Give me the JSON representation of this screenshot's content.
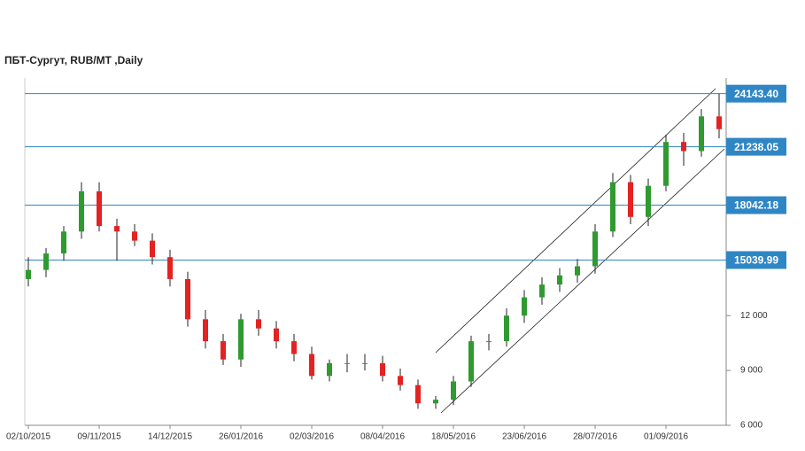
{
  "chart_data": {
    "type": "candlestick",
    "title": "ПБТ-Сургут,  RUB/MT ,Daily",
    "categories": [
      "02/10/2015",
      null,
      null,
      null,
      "09/11/2015",
      null,
      null,
      null,
      "14/12/2015",
      null,
      null,
      null,
      "26/01/2016",
      null,
      null,
      null,
      "02/03/2016",
      null,
      null,
      null,
      "08/04/2016",
      null,
      null,
      null,
      "18/05/2016",
      null,
      null,
      null,
      "23/06/2016",
      null,
      null,
      null,
      "28/07/2016",
      null,
      null,
      null,
      "01/09/2016",
      null,
      null,
      null
    ],
    "open": [
      14000,
      14500,
      15400,
      16600,
      18800,
      16900,
      16600,
      16100,
      15200,
      14000,
      11800,
      10600,
      9600,
      11800,
      11300,
      10600,
      9900,
      8700,
      9400,
      9400,
      9400,
      8700,
      8200,
      7200,
      7400,
      8400,
      10600,
      10600,
      12000,
      13000,
      13700,
      14200,
      14700,
      16600,
      19300,
      17400,
      19100,
      21500,
      21000,
      22900
    ],
    "high": [
      15200,
      15700,
      16900,
      19300,
      19300,
      17300,
      17000,
      16500,
      15600,
      14400,
      12300,
      11000,
      12100,
      12300,
      11700,
      11000,
      10300,
      9600,
      9900,
      9900,
      9800,
      9100,
      8500,
      7600,
      8700,
      10900,
      11000,
      12400,
      13400,
      14100,
      14600,
      15100,
      17000,
      19800,
      19700,
      19500,
      21900,
      22000,
      23300,
      24143
    ],
    "low": [
      13600,
      14100,
      15000,
      16200,
      16600,
      15000,
      15800,
      14800,
      13600,
      11400,
      10200,
      9300,
      9200,
      10900,
      10200,
      9500,
      8500,
      8400,
      8900,
      9000,
      8400,
      7900,
      6900,
      6900,
      7100,
      8100,
      10100,
      10300,
      11600,
      12600,
      13300,
      13800,
      14300,
      16300,
      17000,
      16900,
      18800,
      20200,
      20700,
      21700
    ],
    "close": [
      14500,
      15400,
      16600,
      18800,
      16900,
      16600,
      16100,
      15200,
      14000,
      11800,
      10600,
      9600,
      11800,
      11300,
      10600,
      9900,
      8700,
      9400,
      9400,
      9400,
      8700,
      8200,
      7200,
      7400,
      8400,
      10600,
      10600,
      12000,
      13000,
      13700,
      14200,
      14700,
      16600,
      19300,
      17400,
      19100,
      21500,
      21000,
      22900,
      22200
    ],
    "up_color": "#2f9a2f",
    "down_color": "#e42222",
    "level_color": "#2f86c4",
    "levels": [
      {
        "value": 24143.4,
        "label": "24143.40"
      },
      21238.05,
      18042.18,
      15039.99
    ],
    "ylim": [
      6000,
      25000
    ],
    "yticks": [
      {
        "value": 6000,
        "label": "6 000"
      },
      {
        "value": 9000,
        "label": "9 000"
      },
      {
        "value": 12000,
        "label": "12 000"
      }
    ]
  }
}
